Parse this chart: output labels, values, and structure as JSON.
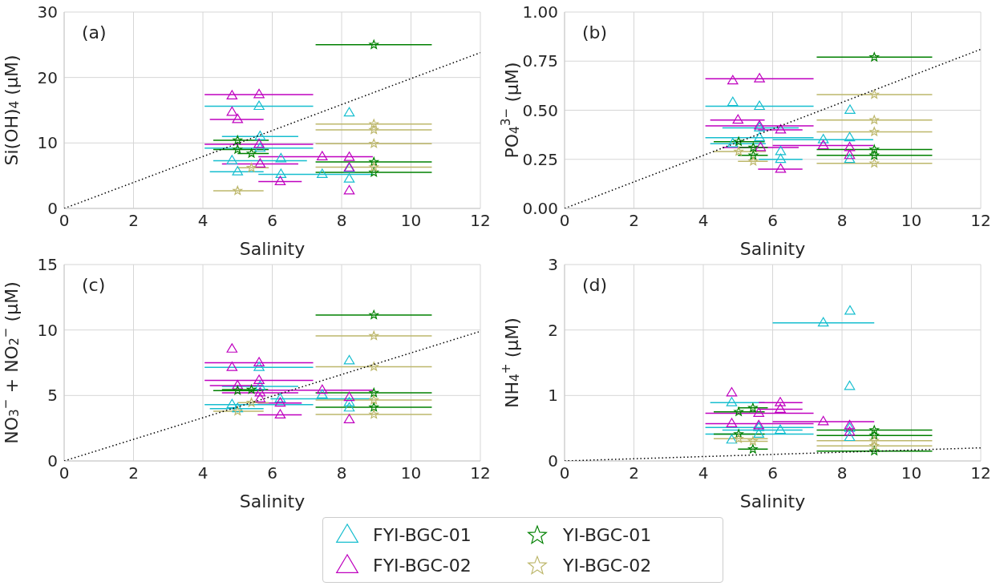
{
  "chart_data": [
    {
      "type": "scatter",
      "xlabel": "Salinity",
      "ylabel": "Si(OH)$_{4}$ (μM)",
      "annotations": [
        "(a)"
      ],
      "xlim": [
        0,
        12
      ],
      "xticks": [
        0,
        2,
        4,
        6,
        8,
        10,
        12
      ],
      "ylim": [
        0,
        30
      ],
      "yticks": [
        0,
        10,
        20,
        30
      ],
      "grid": true,
      "legend": "bottom",
      "series": [
        {
          "name": "FYI-BGC-01",
          "color": "#17becf",
          "marker": "triangle",
          "x": [
            5.62,
            8.22,
            5.65,
            4.84,
            5.0,
            6.25,
            6.25,
            7.44,
            8.22,
            8.22,
            5.65
          ],
          "values": [
            15.6,
            14.6,
            11.0,
            7.3,
            5.6,
            7.6,
            5.2,
            5.2,
            6.1,
            4.5,
            9.2
          ],
          "xerrors": [
            [
              4.05,
              7.18
            ],
            null,
            [
              4.55,
              6.75
            ],
            [
              4.3,
              7.0
            ],
            [
              4.2,
              5.75
            ],
            null,
            [
              5.6,
              8.9
            ],
            null,
            null,
            null,
            [
              4.05,
              7.18
            ]
          ]
        },
        {
          "name": "FYI-BGC-02",
          "color": "#bf00bf",
          "marker": "triangle",
          "x": [
            4.84,
            5.62,
            4.84,
            5.0,
            5.62,
            5.65,
            6.23,
            7.44,
            8.22,
            8.22,
            8.22
          ],
          "values": [
            17.2,
            17.4,
            14.7,
            13.6,
            9.8,
            6.8,
            4.1,
            7.9,
            7.8,
            6.2,
            2.7
          ],
          "xerrors": [
            null,
            [
              4.05,
              7.18
            ],
            null,
            [
              4.2,
              5.75
            ],
            [
              4.05,
              7.18
            ],
            [
              4.55,
              6.75
            ],
            [
              5.6,
              6.85
            ],
            [
              5.6,
              8.9
            ],
            null,
            null,
            null
          ]
        },
        {
          "name": "YI-BGC-01",
          "color": "#008000",
          "marker": "star",
          "x": [
            8.93,
            5.0,
            5.0,
            5.4,
            8.93,
            8.93
          ],
          "values": [
            25.0,
            10.4,
            9.0,
            8.4,
            7.1,
            5.5
          ],
          "xerrors": [
            [
              7.25,
              10.6
            ],
            [
              4.3,
              5.9
            ],
            [
              4.3,
              5.9
            ],
            [
              5.0,
              5.9
            ],
            [
              7.25,
              10.6
            ],
            [
              7.25,
              10.6
            ]
          ]
        },
        {
          "name": "YI-BGC-02",
          "color": "#bdb76b",
          "marker": "star",
          "x": [
            8.93,
            8.93,
            8.93,
            8.93,
            5.4,
            5.0
          ],
          "values": [
            12.9,
            12.0,
            9.9,
            6.3,
            6.2,
            2.7
          ],
          "xerrors": [
            [
              7.25,
              10.6
            ],
            [
              7.25,
              10.6
            ],
            [
              7.25,
              10.6
            ],
            [
              7.25,
              10.6
            ],
            [
              5.0,
              5.9
            ],
            [
              4.3,
              5.75
            ]
          ]
        },
        {
          "type": "line",
          "color": "#000000",
          "line_style": "dotted",
          "marker": "none",
          "x": [
            0,
            12
          ],
          "values": [
            0,
            23.8
          ]
        }
      ]
    },
    {
      "type": "scatter",
      "xlabel": "Salinity",
      "ylabel": "PO$_{4}$$^{3−}$ (μM)",
      "annotations": [
        "(b)"
      ],
      "xlim": [
        0,
        12
      ],
      "xticks": [
        0,
        2,
        4,
        6,
        8,
        10,
        12
      ],
      "ylim": [
        0,
        1
      ],
      "yticks": [
        {
          "value": 0,
          "label": "0.00"
        },
        {
          "value": 0.25,
          "label": "0.25"
        },
        {
          "value": 0.5,
          "label": "0.50"
        },
        {
          "value": 0.75,
          "label": "0.75"
        },
        {
          "value": 1,
          "label": "1.00"
        }
      ],
      "grid": true,
      "legend": "bottom",
      "series": [
        {
          "name": "FYI-BGC-01",
          "color": "#17becf",
          "marker": "triangle",
          "x": [
            4.85,
            5.62,
            5.62,
            8.23,
            5.62,
            8.22,
            7.46,
            4.85,
            6.23,
            6.23,
            8.22
          ],
          "values": [
            0.54,
            0.52,
            0.41,
            0.5,
            0.36,
            0.36,
            0.35,
            0.33,
            0.29,
            0.25,
            0.25
          ],
          "xerrors": [
            null,
            [
              4.06,
              7.18
            ],
            [
              4.55,
              6.75
            ],
            null,
            [
              4.06,
              7.18
            ],
            null,
            [
              6.0,
              8.9
            ],
            [
              4.2,
              5.8
            ],
            null,
            [
              5.6,
              6.86
            ],
            null
          ]
        },
        {
          "name": "FYI-BGC-02",
          "color": "#bf00bf",
          "marker": "triangle",
          "x": [
            4.85,
            5.62,
            5.0,
            5.62,
            6.23,
            5.65,
            7.46,
            8.22,
            8.22,
            6.23
          ],
          "values": [
            0.65,
            0.66,
            0.45,
            0.42,
            0.4,
            0.31,
            0.32,
            0.31,
            0.27,
            0.2
          ],
          "xerrors": [
            null,
            [
              4.06,
              7.18
            ],
            [
              4.2,
              5.77
            ],
            [
              4.06,
              7.18
            ],
            [
              5.58,
              6.86
            ],
            [
              4.55,
              6.75
            ],
            [
              6.0,
              8.9
            ],
            null,
            null,
            [
              5.58,
              6.86
            ]
          ]
        },
        {
          "name": "YI-BGC-01",
          "color": "#008000",
          "marker": "star",
          "x": [
            8.93,
            8.93,
            8.93,
            5.02,
            5.44,
            5.44
          ],
          "values": [
            0.77,
            0.3,
            0.27,
            0.34,
            0.31,
            0.27
          ],
          "xerrors": [
            [
              7.27,
              10.6
            ],
            [
              7.27,
              10.6
            ],
            [
              7.27,
              10.6
            ],
            [
              4.3,
              5.77
            ],
            [
              5.0,
              5.86
            ],
            [
              5.0,
              5.86
            ]
          ]
        },
        {
          "name": "YI-BGC-02",
          "color": "#bdb76b",
          "marker": "star",
          "x": [
            8.93,
            8.93,
            8.93,
            8.93,
            5.02,
            5.44
          ],
          "values": [
            0.58,
            0.45,
            0.39,
            0.23,
            0.29,
            0.24
          ],
          "xerrors": [
            [
              7.27,
              10.6
            ],
            [
              7.27,
              10.6
            ],
            [
              7.27,
              10.6
            ],
            [
              7.27,
              10.6
            ],
            [
              4.3,
              5.8
            ],
            [
              5.0,
              5.86
            ]
          ]
        },
        {
          "type": "line",
          "color": "#000000",
          "line_style": "dotted",
          "marker": "none",
          "x": [
            0,
            12
          ],
          "values": [
            0,
            0.81
          ]
        }
      ]
    },
    {
      "type": "scatter",
      "xlabel": "Salinity",
      "ylabel": "NO$_{3}$$^{−}$ + NO$_{2}$$^{−}$ (μM)",
      "annotations": [
        "(c)"
      ],
      "xlim": [
        0,
        12
      ],
      "xticks": [
        0,
        2,
        4,
        6,
        8,
        10,
        12
      ],
      "ylim": [
        0,
        15
      ],
      "yticks": [
        0,
        5,
        10,
        15
      ],
      "grid": true,
      "legend": "bottom",
      "series": [
        {
          "name": "FYI-BGC-01",
          "color": "#17becf",
          "marker": "triangle",
          "x": [
            5.62,
            8.22,
            5.65,
            6.23,
            4.84,
            5.0,
            7.44,
            8.22,
            8.22
          ],
          "values": [
            7.15,
            7.65,
            5.7,
            4.75,
            4.3,
            4.0,
            5.05,
            4.45,
            4.05
          ],
          "xerrors": [
            [
              4.05,
              7.18
            ],
            null,
            [
              4.55,
              6.75
            ],
            [
              5.95,
              8.9
            ],
            [
              4.05,
              7.18
            ],
            [
              4.2,
              5.75
            ],
            null,
            null,
            null
          ]
        },
        {
          "name": "FYI-BGC-02",
          "color": "#bf00bf",
          "marker": "triangle",
          "x": [
            4.84,
            4.84,
            5.62,
            5.62,
            5.0,
            5.65,
            5.65,
            6.23,
            6.23,
            7.44,
            8.22,
            8.22
          ],
          "values": [
            8.55,
            7.15,
            7.5,
            6.15,
            5.75,
            5.2,
            4.75,
            4.43,
            3.52,
            5.4,
            4.85,
            3.15
          ],
          "xerrors": [
            null,
            null,
            [
              4.05,
              7.18
            ],
            [
              4.05,
              7.18
            ],
            [
              4.2,
              5.75
            ],
            [
              4.55,
              6.75
            ],
            null,
            [
              5.58,
              6.85
            ],
            [
              5.58,
              6.85
            ],
            [
              5.6,
              8.9
            ],
            null,
            null
          ]
        },
        {
          "name": "YI-BGC-01",
          "color": "#008000",
          "marker": "star",
          "x": [
            8.93,
            8.93,
            8.93,
            5.0,
            5.4
          ],
          "values": [
            11.15,
            5.2,
            4.1,
            5.38,
            5.45
          ],
          "xerrors": [
            [
              7.25,
              10.6
            ],
            [
              7.25,
              10.6
            ],
            [
              7.25,
              10.6
            ],
            [
              4.3,
              5.75
            ],
            [
              4.55,
              5.88
            ]
          ]
        },
        {
          "name": "YI-BGC-02",
          "color": "#bdb76b",
          "marker": "star",
          "x": [
            8.93,
            8.93,
            8.93,
            8.93,
            5.0,
            5.4
          ],
          "values": [
            9.55,
            7.2,
            4.65,
            3.55,
            3.8,
            4.45
          ],
          "xerrors": [
            [
              7.25,
              10.6
            ],
            [
              7.25,
              10.6
            ],
            [
              7.25,
              10.6
            ],
            [
              7.25,
              10.6
            ],
            [
              4.3,
              5.75
            ],
            [
              5.0,
              5.9
            ]
          ]
        },
        {
          "type": "line",
          "color": "#000000",
          "line_style": "dotted",
          "marker": "none",
          "x": [
            0,
            12
          ],
          "values": [
            0,
            9.9
          ]
        }
      ]
    },
    {
      "type": "scatter",
      "xlabel": "Salinity",
      "ylabel": "NH$_{4}$$^{+}$ (μM)",
      "annotations": [
        "(d)"
      ],
      "xlim": [
        0,
        12
      ],
      "xticks": [
        0,
        2,
        4,
        6,
        8,
        10,
        12
      ],
      "ylim": [
        0,
        3
      ],
      "yticks": [
        0,
        1,
        2,
        3
      ],
      "grid": true,
      "legend": "bottom",
      "series": [
        {
          "name": "FYI-BGC-01",
          "color": "#17becf",
          "marker": "triangle",
          "x": [
            7.46,
            8.23,
            8.22,
            4.82,
            5.6,
            6.22,
            5.6,
            4.82,
            8.22,
            8.22
          ],
          "values": [
            2.11,
            2.29,
            1.14,
            0.89,
            0.51,
            0.47,
            0.41,
            0.32,
            0.36,
            0.5
          ],
          "xerrors": [
            [
              6.0,
              8.93
            ],
            null,
            null,
            [
              4.2,
              5.77
            ],
            [
              4.06,
              7.18
            ],
            [
              4.55,
              6.86
            ],
            [
              4.06,
              7.18
            ],
            null,
            null,
            null
          ]
        },
        {
          "name": "FYI-BGC-02",
          "color": "#bf00bf",
          "marker": "triangle",
          "x": [
            4.82,
            6.22,
            6.22,
            5.6,
            7.46,
            4.82,
            5.6,
            8.22,
            8.22
          ],
          "values": [
            1.04,
            0.89,
            0.79,
            0.73,
            0.6,
            0.57,
            0.54,
            0.54,
            0.44
          ],
          "xerrors": [
            null,
            [
              5.6,
              6.86
            ],
            [
              5.6,
              6.86
            ],
            [
              4.06,
              7.18
            ],
            [
              6.0,
              8.93
            ],
            [
              4.06,
              7.18
            ],
            null,
            null,
            null
          ]
        },
        {
          "name": "YI-BGC-01",
          "color": "#008000",
          "marker": "star",
          "x": [
            5.43,
            5.02,
            5.02,
            5.43,
            8.93,
            8.93,
            8.93
          ],
          "values": [
            0.81,
            0.75,
            0.41,
            0.18,
            0.47,
            0.39,
            0.15
          ],
          "xerrors": [
            [
              5.0,
              5.86
            ],
            [
              4.3,
              5.77
            ],
            [
              4.3,
              5.77
            ],
            [
              5.0,
              5.86
            ],
            [
              7.27,
              10.6
            ],
            [
              7.27,
              10.6
            ],
            [
              7.27,
              10.6
            ]
          ]
        },
        {
          "name": "YI-BGC-02",
          "color": "#bdb76b",
          "marker": "star",
          "x": [
            5.02,
            5.43,
            8.93,
            8.93
          ],
          "values": [
            0.34,
            0.3,
            0.31,
            0.23
          ],
          "xerrors": [
            [
              4.3,
              5.86
            ],
            [
              5.0,
              5.86
            ],
            [
              7.27,
              10.6
            ],
            [
              7.27,
              10.6
            ]
          ]
        },
        {
          "type": "line",
          "color": "#000000",
          "line_style": "dotted",
          "marker": "none",
          "x": [
            0,
            12
          ],
          "values": [
            0,
            0.2
          ]
        }
      ]
    }
  ]
}
